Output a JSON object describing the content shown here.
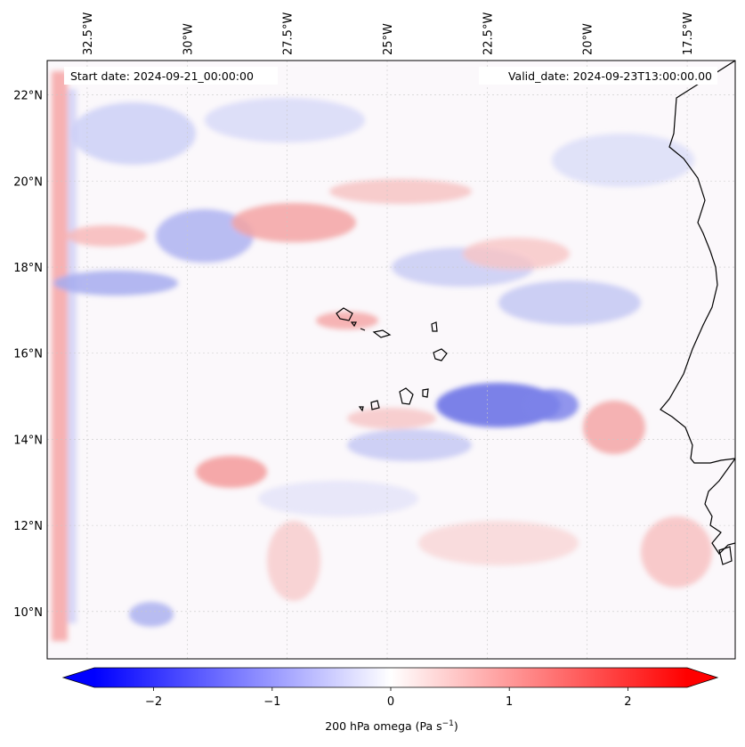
{
  "header": {
    "start_date": "Start date: 2024-09-21_00:00:00",
    "valid_date": "Valid_date: 2024-09-23T13:00:00.00"
  },
  "map": {
    "lon_range": [
      -33.5,
      -16.3
    ],
    "lat_range": [
      8.9,
      22.8
    ],
    "lon_ticks": [
      {
        "value": -32.5,
        "label": "32.5°W"
      },
      {
        "value": -30,
        "label": "30°W"
      },
      {
        "value": -27.5,
        "label": "27.5°W"
      },
      {
        "value": -25,
        "label": "25°W"
      },
      {
        "value": -22.5,
        "label": "22.5°W"
      },
      {
        "value": -20,
        "label": "20°W"
      },
      {
        "value": -17.5,
        "label": "17.5°W"
      }
    ],
    "lat_ticks": [
      {
        "value": 22,
        "label": "22°N"
      },
      {
        "value": 20,
        "label": "20°N"
      },
      {
        "value": 18,
        "label": "18°N"
      },
      {
        "value": 16,
        "label": "16°N"
      },
      {
        "value": 14,
        "label": "14°N"
      },
      {
        "value": 12,
        "label": "12°N"
      },
      {
        "value": 10,
        "label": "10°N"
      }
    ],
    "gridlines": true,
    "colormap": "bwr",
    "colors": {
      "negative": "#0000ff",
      "zero": "#ffffff",
      "positive": "#ff0000"
    }
  },
  "colorbar": {
    "min": -2.5,
    "max": 2.5,
    "ticks": [
      {
        "value": -2,
        "label": "−2"
      },
      {
        "value": -1,
        "label": "−1"
      },
      {
        "value": 0,
        "label": "0"
      },
      {
        "value": 1,
        "label": "1"
      },
      {
        "value": 2,
        "label": "2"
      }
    ],
    "label_prefix": "200 hPa omega (Pa s",
    "label_exp": "−1",
    "label_suffix": ")"
  }
}
